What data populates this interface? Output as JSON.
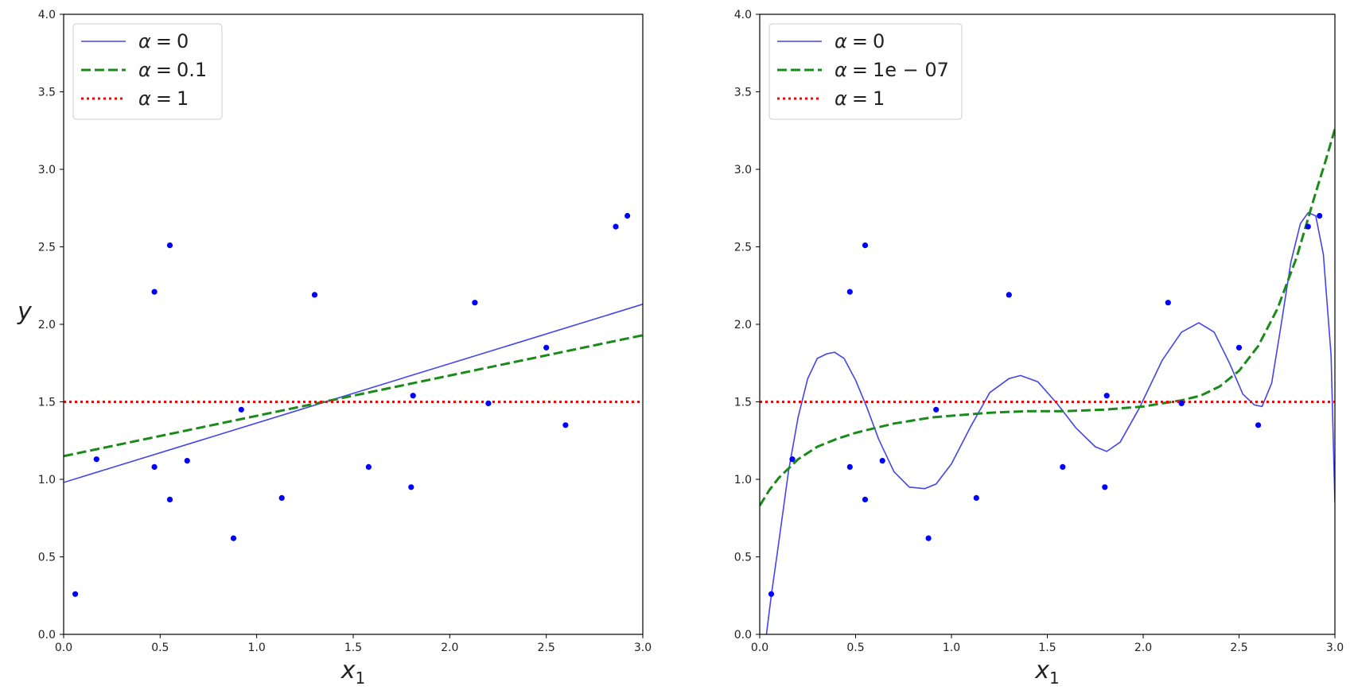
{
  "chart_data": [
    {
      "type": "line",
      "xlabel": "x",
      "xlabel_subscript": "1",
      "ylabel": "y",
      "xlim": [
        0,
        3
      ],
      "ylim": [
        0,
        4
      ],
      "xticks": [
        "0.0",
        "0.5",
        "1.0",
        "1.5",
        "2.0",
        "2.5",
        "3.0"
      ],
      "yticks": [
        "0.0",
        "0.5",
        "1.0",
        "1.5",
        "2.0",
        "2.5",
        "3.0",
        "3.5",
        "4.0"
      ],
      "grid": false,
      "legend_position": "top-left",
      "scatter": {
        "color": "#0000ff",
        "x": [
          0.06,
          0.17,
          0.47,
          0.47,
          0.55,
          0.55,
          0.64,
          0.88,
          0.92,
          1.13,
          1.3,
          1.58,
          1.8,
          1.81,
          2.13,
          2.2,
          2.5,
          2.6,
          2.86,
          2.92
        ],
        "y": [
          0.26,
          1.13,
          2.21,
          1.08,
          2.51,
          0.87,
          1.12,
          0.62,
          1.45,
          0.88,
          2.19,
          1.08,
          0.95,
          1.54,
          2.14,
          1.49,
          1.85,
          1.35,
          2.63,
          2.7
        ]
      },
      "series": [
        {
          "name": "α = 0",
          "legend_prefix": "α",
          "legend_op": "=",
          "legend_value": "0",
          "color": "#4444ee",
          "style": "solid",
          "x": [
            0,
            3
          ],
          "y": [
            0.98,
            2.13
          ]
        },
        {
          "name": "α = 0.1",
          "legend_prefix": "α",
          "legend_op": "=",
          "legend_value": "0.1",
          "color": "#1a8a1a",
          "style": "dashed",
          "x": [
            0,
            3
          ],
          "y": [
            1.15,
            1.93
          ]
        },
        {
          "name": "α = 1",
          "legend_prefix": "α",
          "legend_op": "=",
          "legend_value": "1",
          "color": "#ff0000",
          "style": "dotted",
          "x": [
            0,
            3
          ],
          "y": [
            1.5,
            1.5
          ]
        }
      ]
    },
    {
      "type": "line",
      "xlabel": "x",
      "xlabel_subscript": "1",
      "ylabel": "",
      "xlim": [
        0,
        3
      ],
      "ylim": [
        0,
        4
      ],
      "xticks": [
        "0.0",
        "0.5",
        "1.0",
        "1.5",
        "2.0",
        "2.5",
        "3.0"
      ],
      "yticks": [
        "0.0",
        "0.5",
        "1.0",
        "1.5",
        "2.0",
        "2.5",
        "3.0",
        "3.5",
        "4.0"
      ],
      "grid": false,
      "legend_position": "top-left",
      "scatter": {
        "color": "#0000ff",
        "x": [
          0.06,
          0.17,
          0.47,
          0.47,
          0.55,
          0.55,
          0.64,
          0.88,
          0.92,
          1.13,
          1.3,
          1.58,
          1.8,
          1.81,
          2.13,
          2.2,
          2.5,
          2.6,
          2.86,
          2.92
        ],
        "y": [
          0.26,
          1.13,
          2.21,
          1.08,
          2.51,
          0.87,
          1.12,
          0.62,
          1.45,
          0.88,
          2.19,
          1.08,
          0.95,
          1.54,
          2.14,
          1.49,
          1.85,
          1.35,
          2.63,
          2.7
        ]
      },
      "series": [
        {
          "name": "α = 0",
          "legend_prefix": "α",
          "legend_op": "=",
          "legend_value": "0",
          "color": "#4444ee",
          "style": "solid",
          "x": [
            0.0,
            0.03,
            0.06,
            0.1,
            0.15,
            0.2,
            0.25,
            0.3,
            0.35,
            0.39,
            0.44,
            0.5,
            0.56,
            0.62,
            0.7,
            0.78,
            0.86,
            0.92,
            1.0,
            1.1,
            1.2,
            1.3,
            1.36,
            1.45,
            1.55,
            1.65,
            1.75,
            1.81,
            1.88,
            1.98,
            2.1,
            2.2,
            2.29,
            2.37,
            2.45,
            2.52,
            2.58,
            2.62,
            2.67,
            2.72,
            2.77,
            2.82,
            2.86,
            2.9,
            2.94,
            2.98,
            3.0
          ],
          "y": [
            -0.3,
            -0.05,
            0.25,
            0.6,
            1.05,
            1.4,
            1.65,
            1.78,
            1.81,
            1.82,
            1.78,
            1.64,
            1.46,
            1.26,
            1.05,
            0.95,
            0.94,
            0.97,
            1.1,
            1.34,
            1.56,
            1.65,
            1.67,
            1.63,
            1.49,
            1.33,
            1.21,
            1.18,
            1.24,
            1.46,
            1.77,
            1.95,
            2.01,
            1.95,
            1.75,
            1.55,
            1.48,
            1.47,
            1.62,
            2.0,
            2.4,
            2.65,
            2.72,
            2.7,
            2.45,
            1.8,
            0.85
          ]
        },
        {
          "name": "α = 1e − 07",
          "legend_prefix": "α",
          "legend_op": "=",
          "legend_value": "1e − 07",
          "color": "#1a8a1a",
          "style": "dashed",
          "x": [
            0.0,
            0.05,
            0.1,
            0.2,
            0.3,
            0.4,
            0.5,
            0.6,
            0.7,
            0.8,
            0.9,
            1.0,
            1.2,
            1.4,
            1.6,
            1.8,
            1.9,
            2.0,
            2.1,
            2.2,
            2.3,
            2.4,
            2.5,
            2.6,
            2.7,
            2.8,
            2.9,
            2.95,
            3.0
          ],
          "y": [
            0.83,
            0.93,
            1.01,
            1.13,
            1.21,
            1.26,
            1.3,
            1.33,
            1.36,
            1.38,
            1.4,
            1.41,
            1.43,
            1.44,
            1.44,
            1.45,
            1.46,
            1.47,
            1.49,
            1.51,
            1.54,
            1.6,
            1.7,
            1.86,
            2.1,
            2.43,
            2.85,
            3.05,
            3.26
          ]
        },
        {
          "name": "α = 1",
          "legend_prefix": "α",
          "legend_op": "=",
          "legend_value": "1",
          "color": "#ff0000",
          "style": "dotted",
          "x": [
            0,
            3
          ],
          "y": [
            1.5,
            1.5
          ]
        }
      ]
    }
  ]
}
